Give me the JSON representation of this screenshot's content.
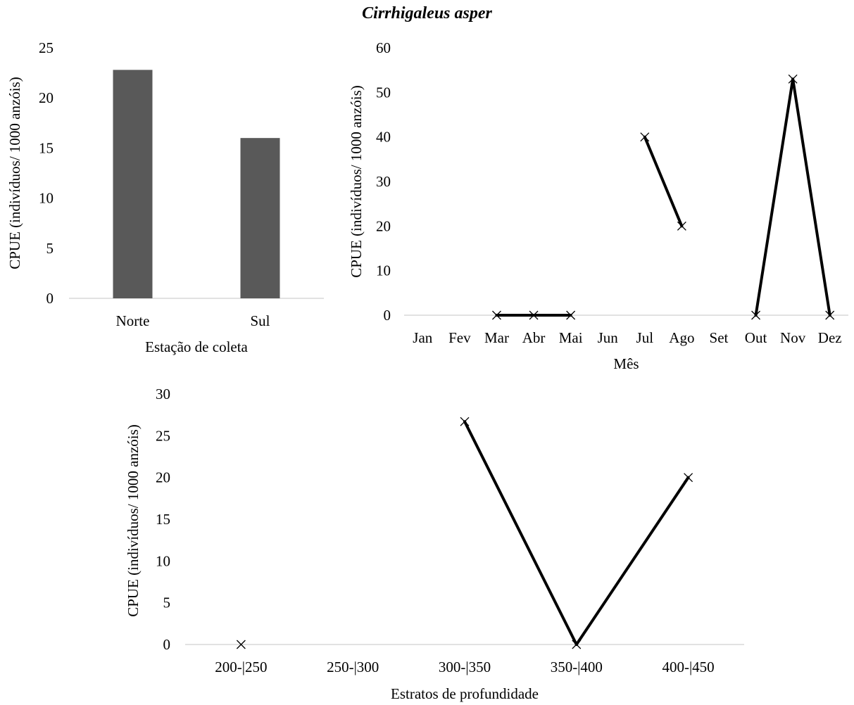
{
  "title": "Cirrhigaleus asper",
  "chart_data": [
    {
      "type": "bar",
      "categories": [
        "Norte",
        "Sul"
      ],
      "values": [
        22.8,
        16.0
      ],
      "xlabel": "Estação de coleta",
      "ylabel": "CPUE (indivíduos/  1000 anzóis)",
      "ylim": [
        0,
        25
      ],
      "yticks": [
        0,
        5,
        10,
        15,
        20,
        25
      ],
      "color": "#595959",
      "grid": false
    },
    {
      "type": "line",
      "categories": [
        "Jan",
        "Fev",
        "Mar",
        "Abr",
        "Mai",
        "Jun",
        "Jul",
        "Ago",
        "Set",
        "Out",
        "Nov",
        "Dez"
      ],
      "values": [
        null,
        null,
        0,
        0,
        0,
        null,
        40,
        20,
        null,
        0,
        53,
        0
      ],
      "xlabel": "Mês",
      "ylabel": "CPUE (indivíduos/  1000 anzóis)",
      "ylim": [
        0,
        60
      ],
      "yticks": [
        0,
        10,
        20,
        30,
        40,
        50,
        60
      ],
      "marker": "x",
      "color": "#000000",
      "grid": false
    },
    {
      "type": "line",
      "categories": [
        "200-|250",
        "250-|300",
        "300-|350",
        "350-|400",
        "400-|450"
      ],
      "values": [
        0,
        null,
        26.7,
        0,
        20
      ],
      "xlabel": "Estratos  de profundidade",
      "ylabel": "CPUE (indivíduos/  1000 anzóis)",
      "ylim": [
        0,
        30
      ],
      "yticks": [
        0,
        5,
        10,
        15,
        20,
        25,
        30
      ],
      "marker": "x",
      "color": "#000000",
      "grid": false
    }
  ]
}
